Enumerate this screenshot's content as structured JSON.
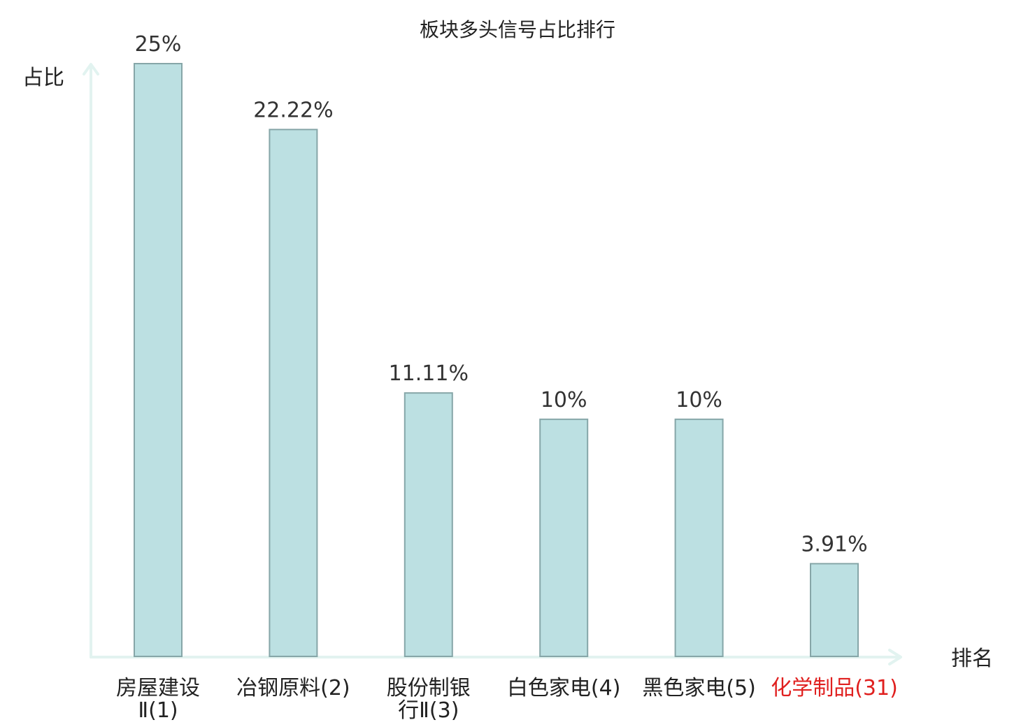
{
  "chart_data": {
    "type": "bar",
    "title": "板块多头信号占比排行",
    "ylabel": "占比",
    "xlabel": "排名",
    "ylim": [
      0,
      25
    ],
    "grid": false,
    "categories": [
      {
        "lines": [
          "房屋建设",
          "Ⅱ(1)"
        ],
        "highlight": false
      },
      {
        "lines": [
          "冶钢原料(2)"
        ],
        "highlight": false
      },
      {
        "lines": [
          "股份制银",
          "行Ⅱ(3)"
        ],
        "highlight": false
      },
      {
        "lines": [
          "白色家电(4)"
        ],
        "highlight": false
      },
      {
        "lines": [
          "黑色家电(5)"
        ],
        "highlight": false
      },
      {
        "lines": [
          "化学制品(31)"
        ],
        "highlight": true
      }
    ],
    "values": [
      25,
      22.22,
      11.11,
      10,
      10,
      3.91
    ],
    "value_labels": [
      "25%",
      "22.22%",
      "11.11%",
      "10%",
      "10%",
      "3.91%"
    ],
    "colors": {
      "bar_fill": "#bce0e2",
      "bar_stroke": "#86a6a8",
      "axis": "#e2f3f0",
      "highlight_text": "#e0201f"
    }
  }
}
